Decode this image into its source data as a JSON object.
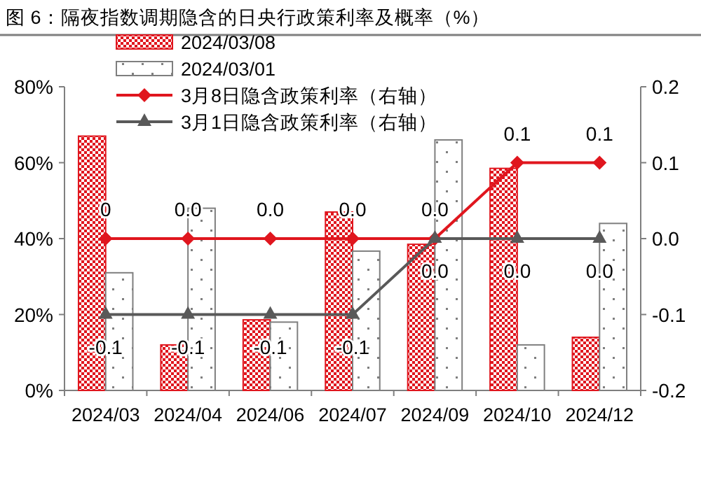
{
  "chart_data": {
    "type": "bar",
    "title": "图 6：隔夜指数调期隐含的日央行政策利率及概率（%）",
    "categories": [
      "2024/03",
      "2024/04",
      "2024/06",
      "2024/07",
      "2024/09",
      "2024/10",
      "2024/12"
    ],
    "series": [
      {
        "name": "2024/03/08",
        "color": "#e0161e",
        "values": [
          67,
          12,
          18.6,
          47,
          38.5,
          58.5,
          14
        ]
      },
      {
        "name": "2024/03/01",
        "color": "#7f7f7f",
        "values": [
          31,
          48,
          18,
          36.7,
          66,
          12,
          44
        ]
      },
      {
        "name": "3月8日隐含政策利率（右轴）",
        "type": "line",
        "axis": "y2",
        "color": "#e0161e",
        "marker": "diamond",
        "values": [
          0,
          0,
          0,
          0,
          0,
          0.1,
          0.1
        ],
        "value_labels": [
          "0",
          "0.0",
          "0.0",
          "0.0",
          "0.0",
          "0.1",
          "0.1"
        ]
      },
      {
        "name": "3月1日隐含政策利率（右轴）",
        "type": "line",
        "axis": "y2",
        "color": "#595959",
        "marker": "triangle",
        "values": [
          -0.1,
          -0.1,
          -0.1,
          -0.1,
          0,
          0,
          0
        ],
        "value_labels": [
          "-0.1",
          "-0.1",
          "-0.1",
          "-0.1",
          "0.0",
          "0.0",
          "0.0"
        ]
      }
    ],
    "ylim": [
      0,
      80
    ],
    "yticks": [
      {
        "value": 0,
        "label": "0%"
      },
      {
        "value": 20,
        "label": "20%"
      },
      {
        "value": 40,
        "label": "40%"
      },
      {
        "value": 60,
        "label": "60%"
      },
      {
        "value": 80,
        "label": "80%"
      }
    ],
    "y2lim": [
      -0.2,
      0.2
    ],
    "y2ticks": [
      {
        "value": -0.2,
        "label": "-0.2"
      },
      {
        "value": -0.1,
        "label": "-0.1"
      },
      {
        "value": 0,
        "label": "0.0"
      },
      {
        "value": 0.1,
        "label": "0.1"
      },
      {
        "value": 0.2,
        "label": "0.2"
      }
    ],
    "legend": "top",
    "grid": false
  }
}
